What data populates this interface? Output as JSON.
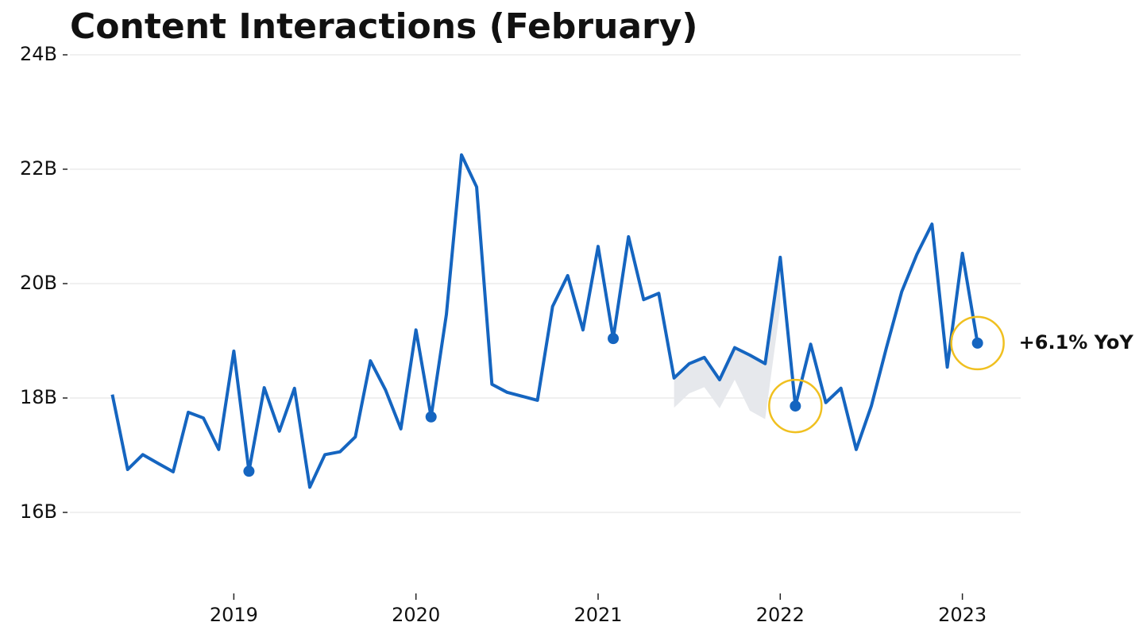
{
  "chart_data": {
    "type": "line",
    "title": "Content Interactions (February)",
    "x": [
      2018.333,
      2018.417,
      2018.5,
      2018.583,
      2018.667,
      2018.75,
      2018.833,
      2018.917,
      2019.0,
      2019.083,
      2019.167,
      2019.25,
      2019.333,
      2019.417,
      2019.5,
      2019.583,
      2019.667,
      2019.75,
      2019.833,
      2019.917,
      2020.0,
      2020.083,
      2020.167,
      2020.25,
      2020.333,
      2020.417,
      2020.5,
      2020.583,
      2020.667,
      2020.75,
      2020.833,
      2020.917,
      2021.0,
      2021.083,
      2021.167,
      2021.25,
      2021.333,
      2021.417,
      2021.5,
      2021.583,
      2021.667,
      2021.75,
      2021.833,
      2021.917,
      2022.0,
      2022.083,
      2022.167,
      2022.25,
      2022.333,
      2022.417,
      2022.5,
      2022.583,
      2022.667,
      2022.75,
      2022.833,
      2022.917,
      2023.0,
      2023.083
    ],
    "values": [
      18.06,
      16.75,
      17.01,
      16.86,
      16.71,
      17.75,
      17.65,
      17.1,
      18.82,
      16.72,
      18.18,
      17.42,
      18.17,
      16.44,
      17.01,
      17.06,
      17.32,
      18.65,
      18.14,
      17.46,
      19.19,
      17.67,
      19.46,
      22.25,
      21.69,
      18.24,
      18.1,
      18.03,
      17.96,
      19.6,
      20.14,
      19.19,
      20.65,
      19.04,
      20.82,
      19.72,
      19.83,
      18.35,
      18.6,
      18.71,
      18.32,
      18.88,
      18.75,
      18.6,
      20.46,
      17.86,
      18.94,
      17.92,
      18.17,
      17.1,
      17.86,
      18.88,
      19.86,
      20.51,
      21.04,
      18.54,
      20.53,
      18.96
    ],
    "color": "#1565c0",
    "markers": [
      9,
      21,
      33,
      45,
      57
    ],
    "circled": [
      45,
      57
    ],
    "circle_color": "#f0c020",
    "band": {
      "color": "#e6e8ec",
      "x": [
        2021.417,
        2021.5,
        2021.583,
        2021.667,
        2021.75,
        2021.833,
        2021.917,
        2022.0
      ],
      "lower": [
        17.83,
        18.08,
        18.19,
        17.82,
        18.32,
        17.78,
        17.63,
        19.58
      ]
    },
    "annotation": {
      "text": "+6.1% YoY",
      "index": 57
    },
    "xlim": [
      2018.1,
      2023.32
    ],
    "xticks": [
      2019,
      2020,
      2021,
      2022,
      2023
    ],
    "ylim": [
      15,
      24
    ],
    "yticks": [
      {
        "value": 16,
        "label": "16B"
      },
      {
        "value": 18,
        "label": "18B"
      },
      {
        "value": 20,
        "label": "20B"
      },
      {
        "value": 22,
        "label": "22B"
      },
      {
        "value": 24,
        "label": "24B"
      }
    ],
    "grid": true
  }
}
